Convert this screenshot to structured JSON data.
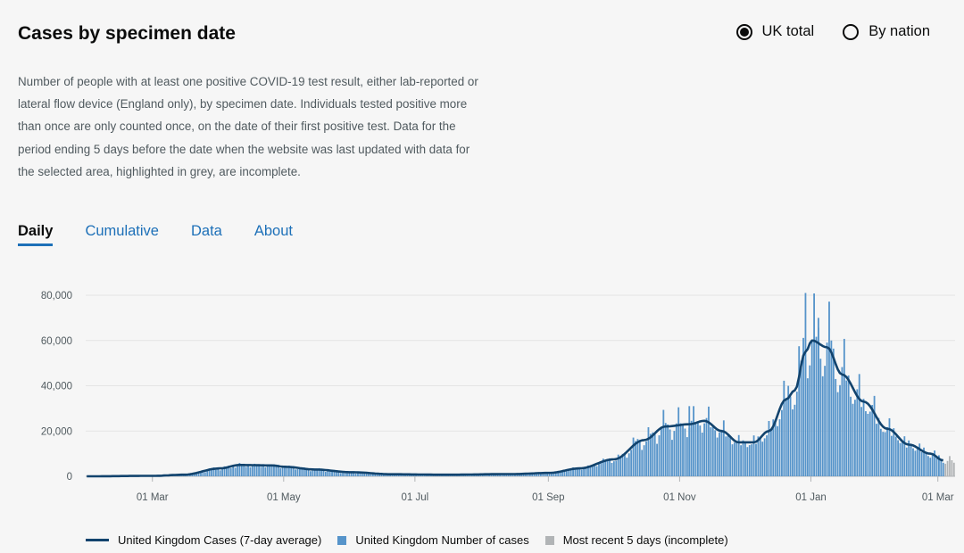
{
  "header": {
    "title": "Cases by specimen date",
    "radios": [
      {
        "label": "UK total",
        "selected": true
      },
      {
        "label": "By nation",
        "selected": false
      }
    ]
  },
  "description": "Number of people with at least one positive COVID-19 test result, either lab-reported or lateral flow device (England only), by specimen date. Individuals tested positive more than once are only counted once, on the date of their first positive test. Data for the period ending 5 days before the date when the website was last updated with data for the selected area, highlighted in grey, are incomplete.",
  "tabs": [
    {
      "label": "Daily",
      "active": true
    },
    {
      "label": "Cumulative",
      "active": false
    },
    {
      "label": "Data",
      "active": false
    },
    {
      "label": "About",
      "active": false
    }
  ],
  "legend": {
    "line": "United Kingdom Cases (7-day average)",
    "bars": "United Kingdom Number of cases",
    "incomplete": "Most recent 5 days (incomplete)"
  },
  "colors": {
    "line": "#12436d",
    "bars": "#5694ca",
    "incomplete": "#b1b4b6"
  },
  "chart_data": {
    "type": "bar",
    "title": "Cases by specimen date",
    "y_ticks": [
      "0",
      "20,000",
      "40,000",
      "60,000",
      "80,000"
    ],
    "ylim": [
      0,
      80000
    ],
    "x_ticks": [
      {
        "date": "2020-03-01",
        "label": "01 Mar"
      },
      {
        "date": "2020-05-01",
        "label": "01 May"
      },
      {
        "date": "2020-07-01",
        "label": "01 Jul"
      },
      {
        "date": "2020-09-01",
        "label": "01 Sep"
      },
      {
        "date": "2020-11-01",
        "label": "01 Nov"
      },
      {
        "date": "2021-01-01",
        "label": "01 Jan"
      },
      {
        "date": "2021-03-01",
        "label": "01 Mar"
      }
    ],
    "date_range": [
      "2020-01-30",
      "2021-03-08"
    ],
    "daily_series_name": "United Kingdom Number of cases",
    "average_series_name": "United Kingdom Cases (7-day average)",
    "average_keypoints": [
      {
        "date": "2020-01-30",
        "value": 0
      },
      {
        "date": "2020-03-01",
        "value": 200
      },
      {
        "date": "2020-03-15",
        "value": 700
      },
      {
        "date": "2020-04-01",
        "value": 3500
      },
      {
        "date": "2020-04-10",
        "value": 5000
      },
      {
        "date": "2020-04-25",
        "value": 4800
      },
      {
        "date": "2020-05-01",
        "value": 4200
      },
      {
        "date": "2020-05-15",
        "value": 3000
      },
      {
        "date": "2020-06-01",
        "value": 1800
      },
      {
        "date": "2020-06-20",
        "value": 900
      },
      {
        "date": "2020-07-15",
        "value": 700
      },
      {
        "date": "2020-08-15",
        "value": 1000
      },
      {
        "date": "2020-09-01",
        "value": 1500
      },
      {
        "date": "2020-09-15",
        "value": 3500
      },
      {
        "date": "2020-10-01",
        "value": 7500
      },
      {
        "date": "2020-10-15",
        "value": 16000
      },
      {
        "date": "2020-10-25",
        "value": 22000
      },
      {
        "date": "2020-11-05",
        "value": 23000
      },
      {
        "date": "2020-11-12",
        "value": 24500
      },
      {
        "date": "2020-11-20",
        "value": 20000
      },
      {
        "date": "2020-11-28",
        "value": 15000
      },
      {
        "date": "2020-12-05",
        "value": 15000
      },
      {
        "date": "2020-12-12",
        "value": 20000
      },
      {
        "date": "2020-12-20",
        "value": 34000
      },
      {
        "date": "2020-12-24",
        "value": 38000
      },
      {
        "date": "2020-12-29",
        "value": 55000
      },
      {
        "date": "2021-01-01",
        "value": 60000
      },
      {
        "date": "2021-01-08",
        "value": 57000
      },
      {
        "date": "2021-01-15",
        "value": 45000
      },
      {
        "date": "2021-01-25",
        "value": 33000
      },
      {
        "date": "2021-02-05",
        "value": 21000
      },
      {
        "date": "2021-02-15",
        "value": 14000
      },
      {
        "date": "2021-02-25",
        "value": 10000
      },
      {
        "date": "2021-03-03",
        "value": 7000
      }
    ],
    "incomplete_days": 5
  }
}
